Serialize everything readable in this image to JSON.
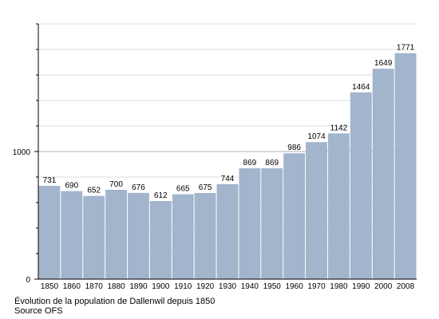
{
  "chart_data": {
    "type": "bar",
    "categories": [
      "1850",
      "1860",
      "1870",
      "1880",
      "1890",
      "1900",
      "1910",
      "1920",
      "1930",
      "1940",
      "1950",
      "1960",
      "1970",
      "1980",
      "1990",
      "2000",
      "2008"
    ],
    "values": [
      731,
      690,
      652,
      700,
      676,
      612,
      665,
      675,
      744,
      869,
      869,
      986,
      1074,
      1142,
      1464,
      1649,
      1771
    ],
    "data_labels": [
      "731",
      "690",
      "652",
      "700",
      "676",
      "612",
      "665",
      "675",
      "744",
      "869",
      "869",
      "986",
      "1074",
      "1142",
      "1464",
      "1649",
      "1771"
    ],
    "ylim": [
      0,
      2000
    ],
    "yticks": [
      0,
      1000
    ],
    "ytick_labels": [
      "0",
      "1000"
    ],
    "minor_yticks": [
      200,
      400,
      600,
      800,
      1200,
      1400,
      1600,
      1800
    ],
    "grid": "horizontal",
    "legend": "none",
    "bar_color": "#a3b5cc",
    "caption": "Évolution de la population de Dallenwil depuis 1850",
    "source": "Source OFS"
  }
}
